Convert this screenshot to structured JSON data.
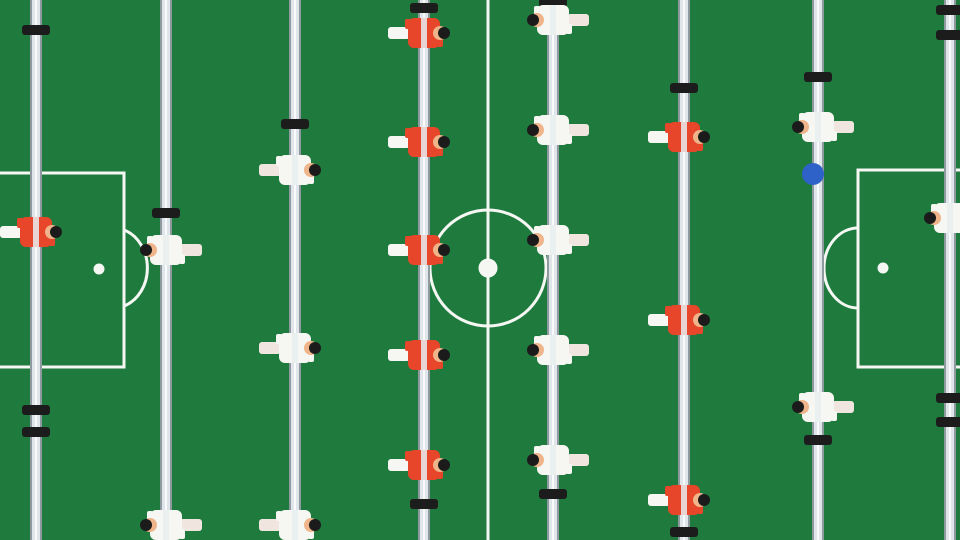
{
  "scene": {
    "type": "foosball-table-top-view",
    "field_color": "#1f7a3e",
    "line_color": "#f4f7f2",
    "team_colors": {
      "orange": "#e8462a",
      "white": "#f6f6f2",
      "head": "#1b1b1b"
    },
    "ball_color": "#2f62c9",
    "rods": [
      {
        "id": "rod-1",
        "players": [
          {
            "team": "orange",
            "facing": "right"
          }
        ]
      },
      {
        "id": "rod-2",
        "players": [
          {
            "team": "white",
            "facing": "left"
          },
          {
            "team": "white",
            "facing": "left"
          }
        ]
      },
      {
        "id": "rod-3",
        "players": [
          {
            "team": "white",
            "facing": "right"
          },
          {
            "team": "white",
            "facing": "right"
          },
          {
            "team": "white",
            "facing": "right"
          }
        ]
      },
      {
        "id": "rod-4",
        "players": [
          {
            "team": "orange",
            "facing": "right"
          },
          {
            "team": "orange",
            "facing": "right"
          },
          {
            "team": "orange",
            "facing": "right"
          },
          {
            "team": "orange",
            "facing": "right"
          },
          {
            "team": "orange",
            "facing": "right"
          }
        ]
      },
      {
        "id": "rod-5",
        "players": [
          {
            "team": "white",
            "facing": "left"
          },
          {
            "team": "white",
            "facing": "left"
          },
          {
            "team": "white",
            "facing": "left"
          },
          {
            "team": "white",
            "facing": "left"
          },
          {
            "team": "white",
            "facing": "left"
          }
        ]
      },
      {
        "id": "rod-6",
        "players": [
          {
            "team": "orange",
            "facing": "right"
          },
          {
            "team": "orange",
            "facing": "right"
          },
          {
            "team": "orange",
            "facing": "right"
          }
        ]
      },
      {
        "id": "rod-7",
        "players": [
          {
            "team": "white",
            "facing": "left"
          },
          {
            "team": "white",
            "facing": "left"
          }
        ]
      },
      {
        "id": "rod-8",
        "players": [
          {
            "team": "white",
            "facing": "left"
          }
        ]
      }
    ]
  }
}
